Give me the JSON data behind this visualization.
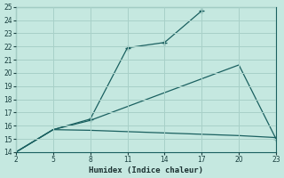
{
  "xlabel": "Humidex (Indice chaleur)",
  "ylabel": "",
  "background_color": "#c5e8e0",
  "grid_color": "#a8d0c8",
  "line_color": "#1a6060",
  "xlim": [
    2,
    23
  ],
  "ylim": [
    14,
    25
  ],
  "xticks": [
    2,
    5,
    8,
    11,
    14,
    17,
    20,
    23
  ],
  "yticks": [
    14,
    15,
    16,
    17,
    18,
    19,
    20,
    21,
    22,
    23,
    24,
    25
  ],
  "line1": {
    "x": [
      2,
      5,
      8,
      11,
      14,
      17
    ],
    "y": [
      14,
      15.7,
      16.5,
      21.9,
      22.3,
      24.7
    ]
  },
  "line2": {
    "x": [
      2,
      5,
      8,
      20,
      23
    ],
    "y": [
      14,
      15.7,
      16.4,
      20.6,
      15.0
    ]
  },
  "line3": {
    "x": [
      2,
      5,
      8,
      11,
      14,
      17,
      20,
      23
    ],
    "y": [
      14,
      15.7,
      15.65,
      15.55,
      15.45,
      15.35,
      15.25,
      15.1
    ]
  }
}
